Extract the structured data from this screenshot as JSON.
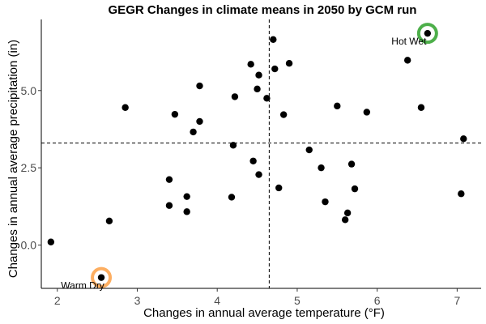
{
  "chart_data": {
    "type": "scatter",
    "title": "GEGR Changes in climate means in 2050 by GCM run",
    "xlabel": "Changes in annual average temperature (°F)",
    "ylabel": "Changes in annual average precipitation (in)",
    "xlim": [
      1.8,
      7.3
    ],
    "ylim": [
      -1.4,
      7.3
    ],
    "x_ticks": [
      {
        "value": 2,
        "label": "2"
      },
      {
        "value": 3,
        "label": "3"
      },
      {
        "value": 4,
        "label": "4"
      },
      {
        "value": 5,
        "label": "5"
      },
      {
        "value": 6,
        "label": "6"
      },
      {
        "value": 7,
        "label": "7"
      }
    ],
    "y_ticks": [
      {
        "value": 0,
        "label": "0.0"
      },
      {
        "value": 2.5,
        "label": "2.5"
      },
      {
        "value": 5,
        "label": "5.0"
      }
    ],
    "grid": false,
    "reference_lines": {
      "x": 4.65,
      "y": 3.3
    },
    "points": [
      {
        "x": 1.92,
        "y": 0.1
      },
      {
        "x": 2.65,
        "y": 0.78
      },
      {
        "x": 2.85,
        "y": 4.45
      },
      {
        "x": 3.4,
        "y": 2.12
      },
      {
        "x": 3.4,
        "y": 1.28
      },
      {
        "x": 3.47,
        "y": 4.23
      },
      {
        "x": 3.62,
        "y": 1.57
      },
      {
        "x": 3.62,
        "y": 1.08
      },
      {
        "x": 3.7,
        "y": 3.66
      },
      {
        "x": 3.78,
        "y": 5.15
      },
      {
        "x": 3.78,
        "y": 4.0
      },
      {
        "x": 4.18,
        "y": 1.55
      },
      {
        "x": 4.2,
        "y": 3.23
      },
      {
        "x": 4.22,
        "y": 4.8
      },
      {
        "x": 4.42,
        "y": 5.85
      },
      {
        "x": 4.45,
        "y": 2.72
      },
      {
        "x": 4.5,
        "y": 5.05
      },
      {
        "x": 4.52,
        "y": 5.5
      },
      {
        "x": 4.52,
        "y": 2.28
      },
      {
        "x": 4.62,
        "y": 4.75
      },
      {
        "x": 4.7,
        "y": 6.65
      },
      {
        "x": 4.72,
        "y": 5.7
      },
      {
        "x": 4.77,
        "y": 1.85
      },
      {
        "x": 4.83,
        "y": 4.22
      },
      {
        "x": 4.9,
        "y": 5.88
      },
      {
        "x": 5.15,
        "y": 3.08
      },
      {
        "x": 5.3,
        "y": 2.5
      },
      {
        "x": 5.35,
        "y": 1.4
      },
      {
        "x": 5.5,
        "y": 4.5
      },
      {
        "x": 5.6,
        "y": 0.82
      },
      {
        "x": 5.63,
        "y": 1.04
      },
      {
        "x": 5.68,
        "y": 2.62
      },
      {
        "x": 5.72,
        "y": 1.82
      },
      {
        "x": 5.87,
        "y": 4.3
      },
      {
        "x": 6.38,
        "y": 5.98
      },
      {
        "x": 6.55,
        "y": 4.45
      },
      {
        "x": 6.63,
        "y": 6.85
      },
      {
        "x": 7.05,
        "y": 1.66
      },
      {
        "x": 7.08,
        "y": 3.44
      },
      {
        "x": 2.55,
        "y": -1.05
      }
    ],
    "highlights": [
      {
        "label": "Hot Wet",
        "x": 6.63,
        "y": 6.85,
        "color": "#4daf4a"
      },
      {
        "label": "Warm Dry",
        "x": 2.55,
        "y": -1.05,
        "color": "#fdae61"
      }
    ]
  }
}
